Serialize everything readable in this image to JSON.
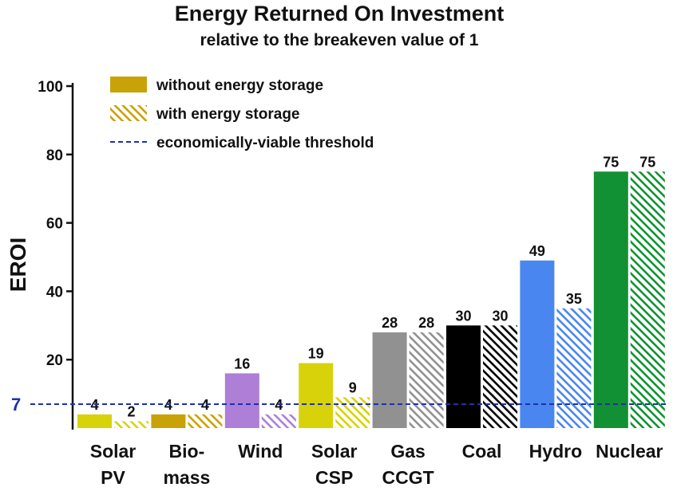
{
  "chart_data": {
    "type": "bar",
    "title": "Energy Returned On Investment",
    "subtitle": "relative to the breakeven value of 1",
    "ylabel": "EROI",
    "xlabel": "",
    "ylim": [
      0,
      100
    ],
    "yticks": [
      20,
      40,
      60,
      80,
      100
    ],
    "categories": [
      [
        "Solar",
        "PV"
      ],
      [
        "Bio-",
        "mass"
      ],
      [
        "Wind"
      ],
      [
        "Solar",
        "CSP"
      ],
      [
        "Gas",
        "CCGT"
      ],
      [
        "Coal"
      ],
      [
        "Hydro"
      ],
      [
        "Nuclear"
      ]
    ],
    "colors": [
      "#d8d20a",
      "#c9a208",
      "#ad7fd6",
      "#d8d20a",
      "#919191",
      "#000000",
      "#4a86f0",
      "#119133"
    ],
    "series": [
      {
        "name": "without energy storage",
        "values": [
          4,
          4,
          16,
          19,
          28,
          30,
          49,
          75
        ],
        "pattern": "solid"
      },
      {
        "name": "with energy storage",
        "values": [
          2,
          4,
          4,
          9,
          28,
          30,
          35,
          75
        ],
        "pattern": "hatched"
      }
    ],
    "threshold": {
      "name": "economically-viable threshold",
      "value": 7,
      "label": "7",
      "color": "#1f2fb0",
      "style": "dashed"
    },
    "legend": {
      "placement": "top-left",
      "items": [
        {
          "label": "without energy storage",
          "swatch": "solid",
          "color": "#c9a208"
        },
        {
          "label": "with energy storage",
          "swatch": "hatched",
          "color": "#c9a208"
        },
        {
          "label": "economically-viable threshold",
          "swatch": "dashed-line",
          "color": "#1f2fb0"
        }
      ]
    },
    "grid": false
  }
}
